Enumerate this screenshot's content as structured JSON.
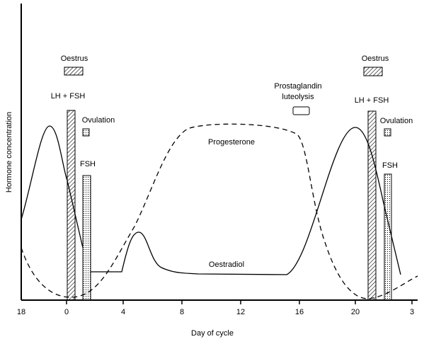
{
  "x_axis": {
    "label": "Day of cycle",
    "ticks": [
      "18",
      "0",
      "4",
      "8",
      "12",
      "16",
      "20",
      "3"
    ]
  },
  "y_axis": {
    "label": "Hormone concentration"
  },
  "annotations": {
    "oestrus_1": "Oestrus",
    "oestrus_2": "Oestrus",
    "lh_fsh_1": "LH + FSH",
    "lh_fsh_2": "LH + FSH",
    "ovulation_1": "Ovulation",
    "ovulation_2": "Ovulation",
    "fsh_1": "FSH",
    "fsh_2": "FSH",
    "prostaglandin": "Prostaglandin",
    "luteolysis": "luteolysis",
    "progesterone": "Progesterone",
    "oestradiol": "Oestradiol"
  }
}
